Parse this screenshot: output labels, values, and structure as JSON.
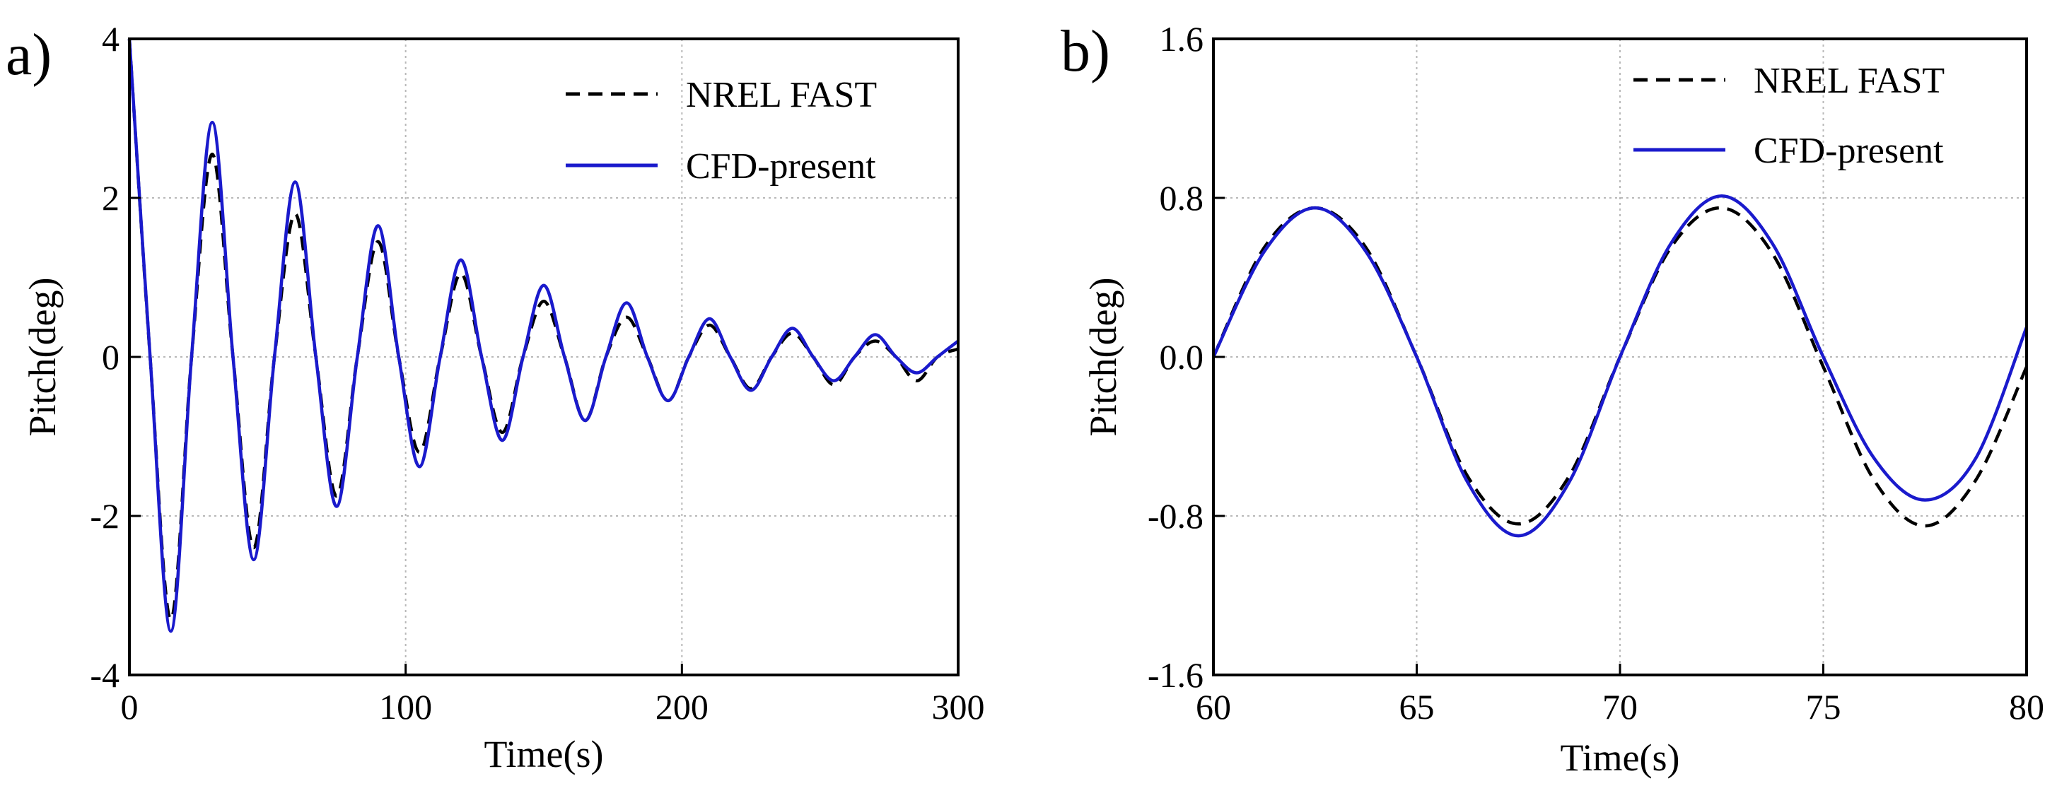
{
  "chart_data": [
    {
      "panel": "a)",
      "type": "line",
      "xlabel": "Time(s)",
      "ylabel": "Pitch(deg)",
      "xlim": [
        0,
        300
      ],
      "ylim": [
        -4,
        4
      ],
      "xticks": [
        "0",
        "100",
        "200",
        "300"
      ],
      "xtick_values": [
        0,
        100,
        200,
        300
      ],
      "yticks": [
        "-4",
        "-2",
        "0",
        "2",
        "4"
      ],
      "ytick_values": [
        -4,
        -2,
        0,
        2,
        4
      ],
      "grid": true,
      "legend_position": "top-right",
      "series": [
        {
          "name": "NREL FAST",
          "style": "dashed",
          "color": "#000000",
          "x": [
            0,
            7.5,
            15,
            22.5,
            30,
            37.5,
            45,
            52.5,
            60,
            67.5,
            75,
            82.5,
            90,
            97.5,
            105,
            112.5,
            120,
            127.5,
            135,
            142.5,
            150,
            157.5,
            165,
            172.5,
            180,
            187.5,
            195,
            202.5,
            210,
            217.5,
            225,
            232.5,
            240,
            247.5,
            255,
            262.5,
            270,
            277.5,
            285,
            292.5,
            300
          ],
          "y": [
            4.0,
            0.0,
            -3.3,
            0.0,
            2.55,
            0.0,
            -2.4,
            0.0,
            1.8,
            0.0,
            -1.75,
            0.0,
            1.45,
            0.0,
            -1.2,
            0.0,
            1.05,
            0.0,
            -0.95,
            0.0,
            0.7,
            0.0,
            -0.8,
            0.0,
            0.5,
            0.0,
            -0.55,
            0.0,
            0.4,
            0.0,
            -0.4,
            0.0,
            0.3,
            0.0,
            -0.35,
            0.0,
            0.2,
            0.0,
            -0.3,
            0.0,
            0.1
          ]
        },
        {
          "name": "CFD-present",
          "style": "solid",
          "color": "#1a1acc",
          "x": [
            0,
            7.5,
            15,
            22.5,
            30,
            37.5,
            45,
            52.5,
            60,
            67.5,
            75,
            82.5,
            90,
            97.5,
            105,
            112.5,
            120,
            127.5,
            135,
            142.5,
            150,
            157.5,
            165,
            172.5,
            180,
            187.5,
            195,
            202.5,
            210,
            217.5,
            225,
            232.5,
            240,
            247.5,
            255,
            262.5,
            270,
            277.5,
            285,
            292.5,
            300
          ],
          "y": [
            4.0,
            0.0,
            -3.45,
            0.0,
            2.95,
            0.0,
            -2.55,
            0.0,
            2.2,
            0.0,
            -1.88,
            0.0,
            1.65,
            0.0,
            -1.38,
            0.0,
            1.22,
            0.0,
            -1.05,
            0.0,
            0.9,
            0.0,
            -0.8,
            0.0,
            0.68,
            0.0,
            -0.55,
            0.0,
            0.48,
            0.0,
            -0.42,
            0.0,
            0.36,
            0.0,
            -0.3,
            0.0,
            0.28,
            0.0,
            -0.2,
            0.0,
            0.2
          ]
        }
      ]
    },
    {
      "panel": "b)",
      "type": "line",
      "xlabel": "Time(s)",
      "ylabel": "Pitch(deg)",
      "xlim": [
        60,
        80
      ],
      "ylim": [
        -1.6,
        1.6
      ],
      "xticks": [
        "60",
        "65",
        "70",
        "75",
        "80"
      ],
      "xtick_values": [
        60,
        65,
        70,
        75,
        80
      ],
      "yticks": [
        "-1.6",
        "-0.8",
        "0.0",
        "0.8",
        "1.6"
      ],
      "ytick_values": [
        -1.6,
        -0.8,
        0.0,
        0.8,
        1.6
      ],
      "grid": true,
      "legend_position": "top-right",
      "series": [
        {
          "name": "NREL FAST",
          "style": "dashed",
          "color": "#000000",
          "x": [
            60,
            61.25,
            62.5,
            63.75,
            65,
            66.25,
            67.5,
            68.75,
            70,
            71.25,
            72.5,
            73.75,
            75,
            76.25,
            77.5,
            78.75,
            80
          ],
          "y": [
            0.0,
            0.55,
            0.75,
            0.55,
            0.0,
            -0.6,
            -0.84,
            -0.6,
            0.0,
            0.55,
            0.75,
            0.52,
            -0.05,
            -0.62,
            -0.85,
            -0.62,
            -0.05
          ]
        },
        {
          "name": "CFD-present",
          "style": "solid",
          "color": "#1a1acc",
          "x": [
            60,
            61.25,
            62.5,
            63.75,
            65,
            66.25,
            67.5,
            68.75,
            70,
            71.25,
            72.5,
            73.75,
            75,
            76.25,
            77.5,
            78.75,
            80
          ],
          "y": [
            0.0,
            0.53,
            0.75,
            0.53,
            0.0,
            -0.63,
            -0.9,
            -0.63,
            0.0,
            0.57,
            0.81,
            0.57,
            0.0,
            -0.51,
            -0.72,
            -0.51,
            0.15
          ]
        }
      ]
    }
  ]
}
